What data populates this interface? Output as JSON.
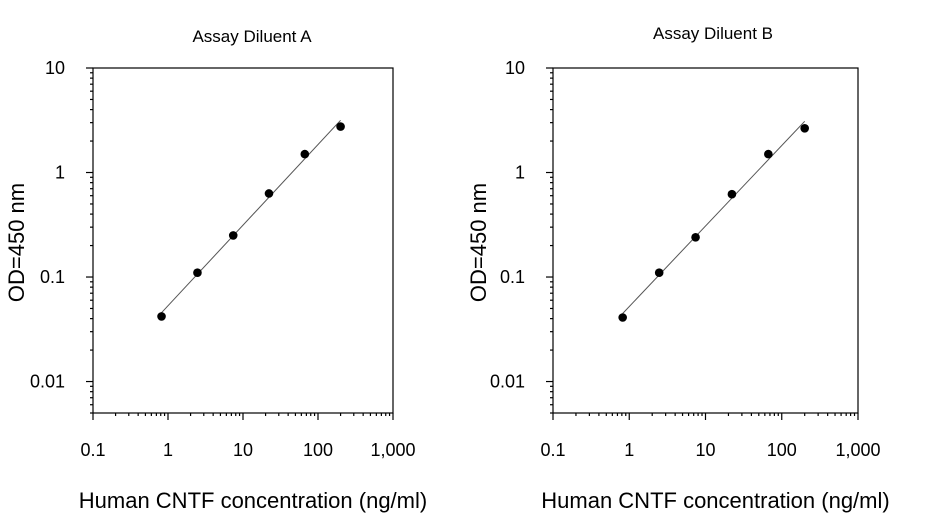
{
  "chart_data": [
    {
      "type": "scatter",
      "title": "Assay Diluent A",
      "xlabel": "Human CNTF concentration (ng/ml)",
      "ylabel": "OD=450 nm",
      "xscale": "log",
      "yscale": "log",
      "xlim": [
        0.1,
        1000
      ],
      "ylim": [
        0.005,
        10
      ],
      "xticks": [
        0.1,
        1,
        10,
        100,
        1000
      ],
      "xtick_labels": [
        "0.1",
        "1",
        "10",
        "100",
        "1,000"
      ],
      "yticks": [
        0.01,
        0.1,
        1,
        10
      ],
      "ytick_labels": [
        "0.01",
        "0.1",
        "1",
        "10"
      ],
      "grid": false,
      "fit_line": true,
      "series": [
        {
          "x": [
            0.82,
            2.47,
            7.41,
            22.2,
            66.7,
            200
          ],
          "y": [
            0.042,
            0.11,
            0.25,
            0.63,
            1.5,
            2.75
          ]
        }
      ]
    },
    {
      "type": "scatter",
      "title": "Assay Diluent B",
      "xlabel": "Human CNTF concentration (ng/ml)",
      "ylabel": "OD=450 nm",
      "xscale": "log",
      "yscale": "log",
      "xlim": [
        0.1,
        1000
      ],
      "ylim": [
        0.005,
        10
      ],
      "xticks": [
        0.1,
        1,
        10,
        100,
        1000
      ],
      "xtick_labels": [
        "0.1",
        "1",
        "10",
        "100",
        "1,000"
      ],
      "yticks": [
        0.01,
        0.1,
        1,
        10
      ],
      "ytick_labels": [
        "0.01",
        "0.1",
        "1",
        "10"
      ],
      "grid": false,
      "fit_line": true,
      "series": [
        {
          "x": [
            0.82,
            2.47,
            7.41,
            22.2,
            66.7,
            200
          ],
          "y": [
            0.041,
            0.11,
            0.24,
            0.62,
            1.5,
            2.65
          ]
        }
      ]
    }
  ]
}
